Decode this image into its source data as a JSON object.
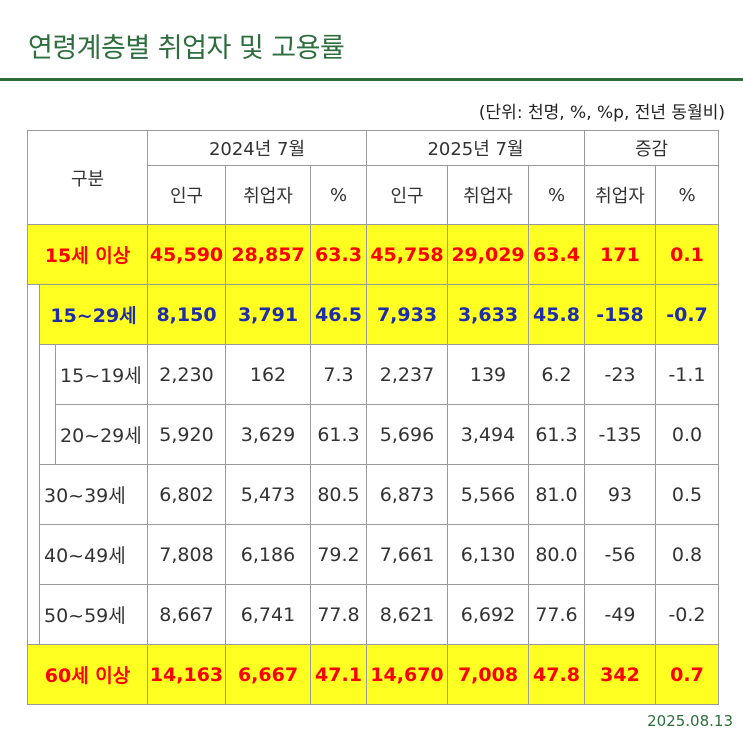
{
  "title": "연령계층별 취업자 및 고용률",
  "unit_note": "(단위: 천명, %, %p, 전년 동월비)",
  "date": "2025.08.13",
  "table": {
    "header": {
      "group_label": "구분",
      "period1": "2024년 7월",
      "period2": "2025년 7월",
      "change": "증감",
      "cols_period": [
        "인구",
        "취업자",
        "%"
      ],
      "cols_change": [
        "취업자",
        "%"
      ]
    },
    "rows": [
      {
        "label": "15세 이상",
        "values": [
          "45,590",
          "28,857",
          "63.3",
          "45,758",
          "29,029",
          "63.4",
          "171",
          "0.1"
        ]
      },
      {
        "label": "15~29세",
        "values": [
          "8,150",
          "3,791",
          "46.5",
          "7,933",
          "3,633",
          "45.8",
          "-158",
          "-0.7"
        ]
      },
      {
        "label": "15~19세",
        "values": [
          "2,230",
          "162",
          "7.3",
          "2,237",
          "139",
          "6.2",
          "-23",
          "-1.1"
        ]
      },
      {
        "label": "20~29세",
        "values": [
          "5,920",
          "3,629",
          "61.3",
          "5,696",
          "3,494",
          "61.3",
          "-135",
          "0.0"
        ]
      },
      {
        "label": "30~39세",
        "values": [
          "6,802",
          "5,473",
          "80.5",
          "6,873",
          "5,566",
          "81.0",
          "93",
          "0.5"
        ]
      },
      {
        "label": "40~49세",
        "values": [
          "7,808",
          "6,186",
          "79.2",
          "7,661",
          "6,130",
          "80.0",
          "-56",
          "0.8"
        ]
      },
      {
        "label": "50~59세",
        "values": [
          "8,667",
          "6,741",
          "77.8",
          "8,621",
          "6,692",
          "77.6",
          "-49",
          "-0.2"
        ]
      },
      {
        "label": "60세 이상",
        "values": [
          "14,163",
          "6,667",
          "47.1",
          "14,670",
          "7,008",
          "47.8",
          "342",
          "0.7"
        ]
      }
    ]
  }
}
